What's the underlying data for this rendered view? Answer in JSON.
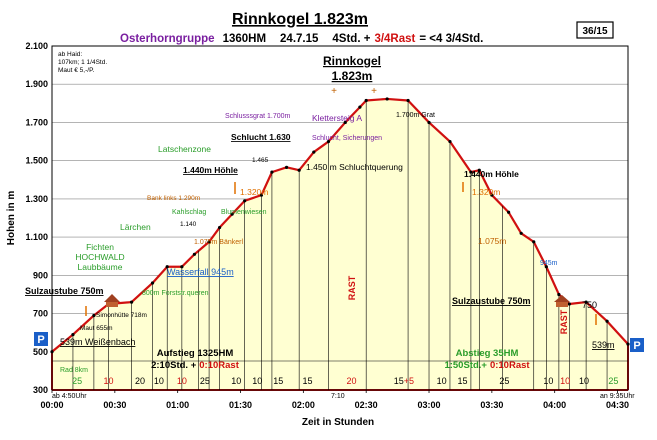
{
  "chart_data": {
    "type": "area",
    "title": "Rinnkogel  1.823m",
    "subtitle": {
      "group": "Osterhorngruppe",
      "hm": "1360HM",
      "date": "24.7.15",
      "std": "4Std. +",
      "rast": "3/4Rast",
      "total": "= <4 3/4Std."
    },
    "badge": "36/15",
    "ylabel": "Hohen in m",
    "xlabel": "Zeit in Stunden",
    "ylim": [
      300,
      2100
    ],
    "yticks": [
      300,
      500,
      700,
      900,
      1100,
      1300,
      1500,
      1700,
      1900,
      2100
    ],
    "xlim": [
      0,
      275
    ],
    "xticks": [
      {
        "t": 0,
        "label": "00:00"
      },
      {
        "t": 30,
        "label": "00:30"
      },
      {
        "t": 60,
        "label": "01:00"
      },
      {
        "t": 90,
        "label": "01:30"
      },
      {
        "t": 120,
        "label": "02:00"
      },
      {
        "t": 150,
        "label": "02:30"
      },
      {
        "t": 180,
        "label": "03:00"
      },
      {
        "t": 210,
        "label": "03:30"
      },
      {
        "t": 240,
        "label": "04:00"
      },
      {
        "t": 270,
        "label": "04:30"
      }
    ],
    "profile": [
      {
        "t": 0,
        "h": 500
      },
      {
        "t": 10,
        "h": 590
      },
      {
        "t": 20,
        "h": 690
      },
      {
        "t": 27,
        "h": 750
      },
      {
        "t": 38,
        "h": 760
      },
      {
        "t": 48,
        "h": 860
      },
      {
        "t": 55,
        "h": 945
      },
      {
        "t": 62,
        "h": 945
      },
      {
        "t": 68,
        "h": 1010
      },
      {
        "t": 75,
        "h": 1075
      },
      {
        "t": 80,
        "h": 1150
      },
      {
        "t": 86,
        "h": 1220
      },
      {
        "t": 92,
        "h": 1290
      },
      {
        "t": 100,
        "h": 1320
      },
      {
        "t": 105,
        "h": 1440
      },
      {
        "t": 112,
        "h": 1465
      },
      {
        "t": 118,
        "h": 1450
      },
      {
        "t": 125,
        "h": 1545
      },
      {
        "t": 132,
        "h": 1600
      },
      {
        "t": 140,
        "h": 1700
      },
      {
        "t": 147,
        "h": 1780
      },
      {
        "t": 150,
        "h": 1815
      },
      {
        "t": 160,
        "h": 1823
      },
      {
        "t": 170,
        "h": 1815
      },
      {
        "t": 180,
        "h": 1700
      },
      {
        "t": 190,
        "h": 1600
      },
      {
        "t": 200,
        "h": 1440
      },
      {
        "t": 204,
        "h": 1450
      },
      {
        "t": 210,
        "h": 1320
      },
      {
        "t": 218,
        "h": 1230
      },
      {
        "t": 224,
        "h": 1120
      },
      {
        "t": 230,
        "h": 1075
      },
      {
        "t": 236,
        "h": 945
      },
      {
        "t": 242,
        "h": 800
      },
      {
        "t": 247,
        "h": 750
      },
      {
        "t": 255,
        "h": 760
      },
      {
        "t": 265,
        "h": 660
      },
      {
        "t": 275,
        "h": 540
      }
    ],
    "segment_lines": [
      10,
      20,
      27,
      38,
      48,
      55,
      62,
      70,
      75,
      80,
      92,
      100,
      105,
      118,
      132,
      150,
      170,
      180,
      190,
      200,
      204,
      215,
      230,
      236,
      242,
      247,
      255,
      265
    ],
    "segment_minutes": [
      {
        "t": 12,
        "label": "25"
      },
      {
        "t": 27,
        "label": "10"
      },
      {
        "t": 42,
        "label": "20"
      },
      {
        "t": 51,
        "label": "10"
      },
      {
        "t": 62,
        "label": "10"
      },
      {
        "t": 73,
        "label": "25"
      },
      {
        "t": 88,
        "label": "10"
      },
      {
        "t": 98,
        "label": "10"
      },
      {
        "t": 108,
        "label": "15"
      },
      {
        "t": 122,
        "label": "15"
      },
      {
        "t": 143,
        "label": "20"
      },
      {
        "t": 168,
        "label": "15+5"
      },
      {
        "t": 186,
        "label": "10"
      },
      {
        "t": 196,
        "label": "15"
      },
      {
        "t": 216,
        "label": "25"
      },
      {
        "t": 237,
        "label": "10"
      },
      {
        "t": 245,
        "label": "10"
      },
      {
        "t": 254,
        "label": "10"
      },
      {
        "t": 268,
        "label": "25"
      }
    ],
    "red_minutes": [
      "10",
      "20",
      "10"
    ],
    "green_minutes": [
      "25",
      "25"
    ],
    "labels": {
      "haid_top": "ab Haid:",
      "haid_km": "107km; 1 1/4Std.",
      "maut": "Maut € 5,-/P.",
      "peak_name": "Rinnkogel",
      "peak_height": "1.823m",
      "schlusssgrat": "Schlusssgrat 1.700m",
      "klettersteig": "Klettersteig A",
      "grat": "1.700m Grat",
      "schlucht": "Schlucht 1.630",
      "schlucht_sich": "Schlucht, Sicherungen",
      "latschenzone": "Latschenzone",
      "hoehle_l": "1.440m Höhle",
      "h1465": "1.465",
      "schluchtquerung": "1.450 m Schluchtquerung",
      "hoehle_r": "1.440m Höhle",
      "bank_links": "Bank links 1.290m",
      "r1320_l": "1.320m",
      "r1320_r": "1.320m",
      "kahlschlag": "Kahlschlag",
      "blumenwiesen": "Blumenwiesen",
      "h1140": "1.140",
      "baerchen": "Lärchen",
      "b1075_l": "1.075m Bänkerl",
      "b1075_r": "1.075m",
      "fichten1": "Fichten",
      "fichten2": "HOCHWALD",
      "fichten3": "Laubbäume",
      "wasserfall": "Wasserfall 945m",
      "w945": "945m",
      "forst": "800m Forststr.queren",
      "sulz_l": "Sulzaustube 750m",
      "sulz_r": "Sulzaustube 750m",
      "simonhuette": "Simonhütte 718m",
      "maut655": "Maut 655m",
      "w539_l": "539m Weißenbach",
      "w539_r": "539m",
      "r750": "750",
      "aufstieg": "Aufstieg 1325HM",
      "aufstieg_time": "2:10Std. +",
      "aufstieg_rast": "0:10Rast",
      "abstieg": "Abstieg 35HM",
      "abstieg_time": "1:50Std.+",
      "abstieg_rast": "0:10Rast",
      "rad": "Rad 8km",
      "rast_peak": "RAST",
      "rast_hut": "RAST",
      "p_left": "P",
      "p_right": "P",
      "start_time": "ab 4:50Uhr",
      "end_time": "an 9:35Uhr",
      "time_710": "7:10"
    }
  }
}
